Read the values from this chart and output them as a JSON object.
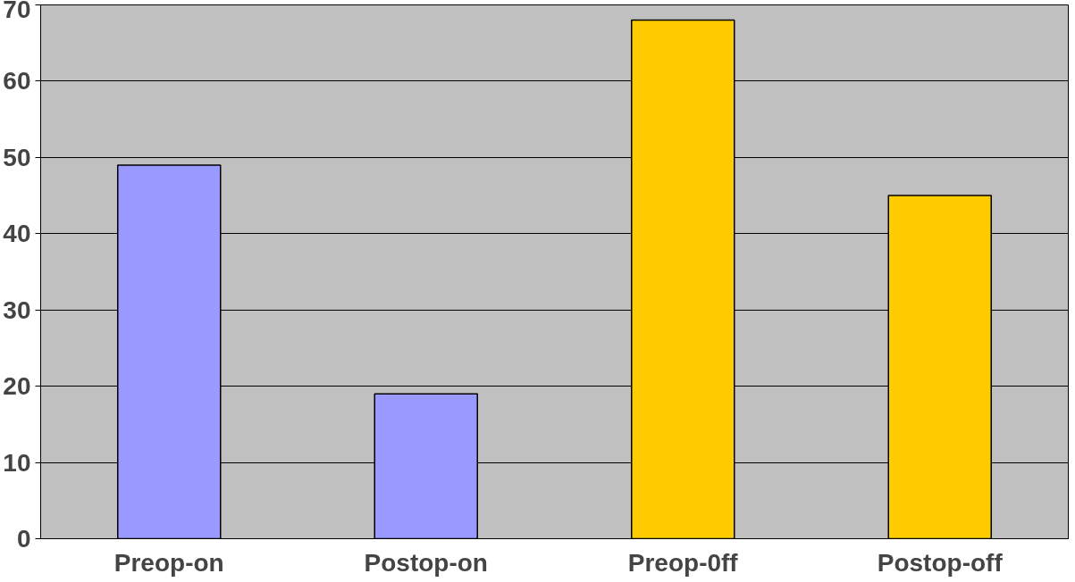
{
  "chart_data": {
    "type": "bar",
    "categories": [
      "Preop-on",
      "Postop-on",
      "Preop-0ff",
      "Postop-off"
    ],
    "values": [
      49,
      19,
      68,
      45
    ],
    "colors": [
      "#9999ff",
      "#9999ff",
      "#ffcc00",
      "#ffcc00"
    ],
    "ylim": [
      0,
      70
    ],
    "yticks": [
      0,
      10,
      20,
      30,
      40,
      50,
      60,
      70
    ],
    "grid": "y"
  }
}
